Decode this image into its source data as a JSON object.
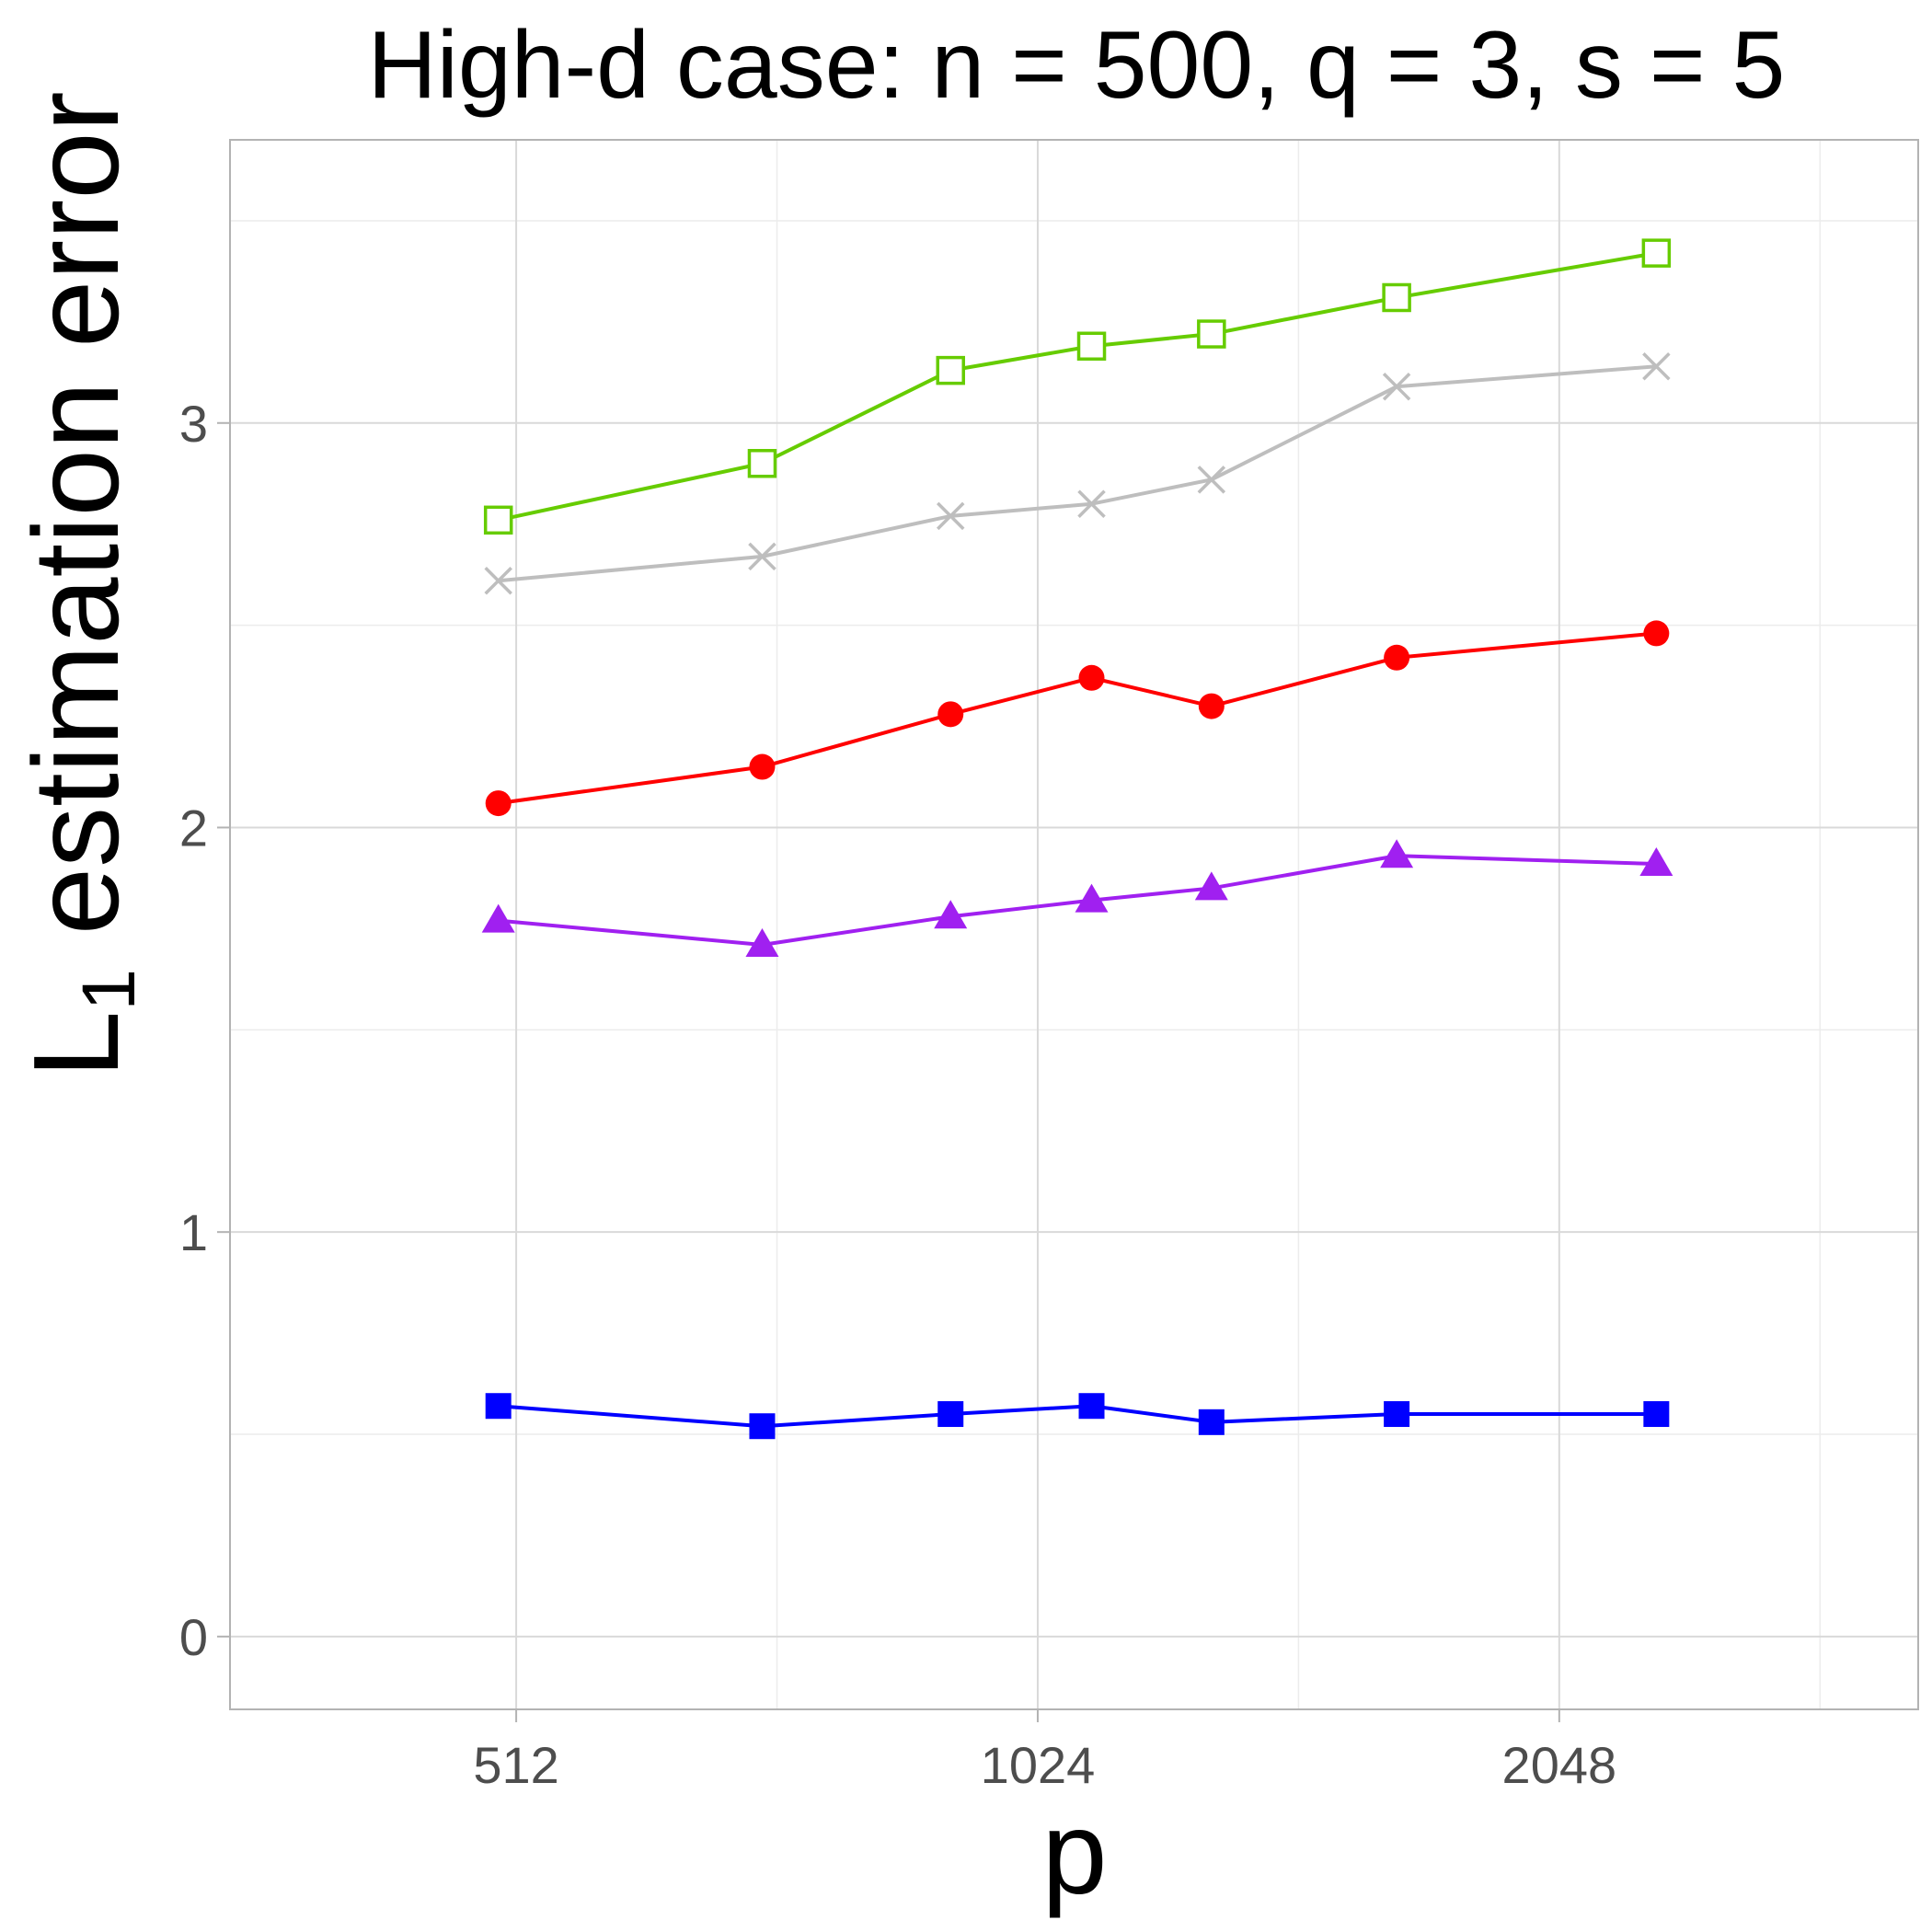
{
  "chart_data": {
    "type": "line",
    "title": "High-d case: n = 500, q = 3, s = 5",
    "xlabel": "p",
    "ylabel_main": "L",
    "ylabel_sub": "1",
    "ylabel_rest": " estimation error",
    "x_scale": "log2",
    "x_ticks": [
      512,
      1024,
      2048
    ],
    "x_tick_labels": [
      "512",
      "1024",
      "2048"
    ],
    "xlim": [
      350,
      3300
    ],
    "y_ticks": [
      0,
      1,
      2,
      3
    ],
    "y_tick_labels": [
      "0",
      "1",
      "2",
      "3"
    ],
    "ylim": [
      -0.18,
      3.7
    ],
    "grid": true,
    "x": [
      500,
      710,
      912,
      1100,
      1290,
      1650,
      2330
    ],
    "series": [
      {
        "marker": "square-open",
        "color": "#66cc00",
        "values": [
          2.76,
          2.9,
          3.13,
          3.19,
          3.22,
          3.31,
          3.42
        ]
      },
      {
        "marker": "cross",
        "color": "#bebebe",
        "values": [
          2.61,
          2.67,
          2.77,
          2.8,
          2.86,
          3.09,
          3.14
        ]
      },
      {
        "marker": "circle",
        "color": "#ff0000",
        "values": [
          2.06,
          2.15,
          2.28,
          2.37,
          2.3,
          2.42,
          2.48
        ]
      },
      {
        "marker": "triangle",
        "color": "#a020f0",
        "values": [
          1.77,
          1.71,
          1.78,
          1.82,
          1.85,
          1.93,
          1.91
        ]
      },
      {
        "marker": "square",
        "color": "#0000ff",
        "values": [
          0.57,
          0.52,
          0.55,
          0.57,
          0.53,
          0.55,
          0.55
        ]
      }
    ]
  }
}
